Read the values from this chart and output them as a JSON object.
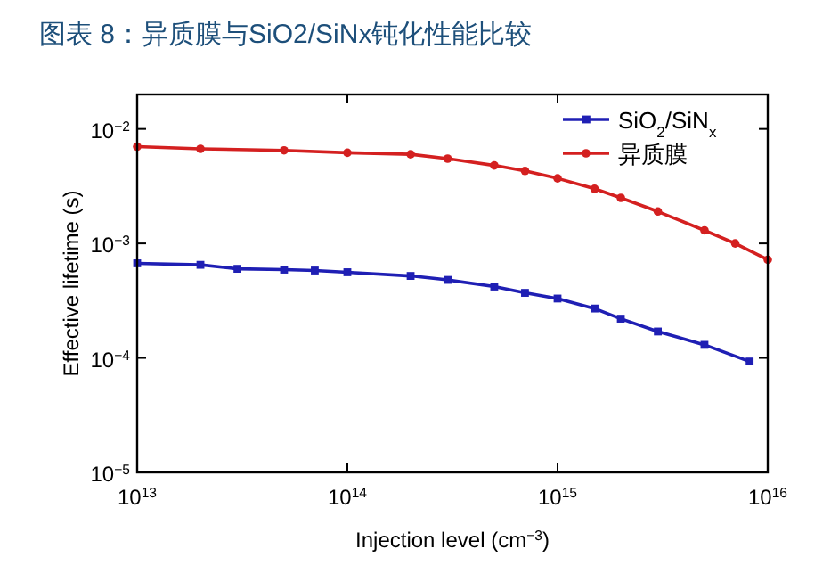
{
  "chart_data": {
    "type": "line",
    "title": "图表 8：异质膜与SiO2/SiNx钝化性能比较",
    "xlabel": "Injection level (cm$^{−3}$)",
    "ylabel": "Effective lifetime (s)",
    "log": "xy",
    "xlim": [
      10000000000000.0,
      1e+16
    ],
    "ylim": [
      1e-05,
      0.02
    ],
    "xticks": [
      {
        "value": 10000000000000.0,
        "label": "10$^{13}$"
      },
      {
        "value": 100000000000000.0,
        "label": "10$^{14}$"
      },
      {
        "value": 1000000000000000.0,
        "label": "10$^{15}$"
      },
      {
        "value": 1e+16,
        "label": "10$^{16}$"
      }
    ],
    "yticks": [
      {
        "value": 1e-05,
        "label": "10$^{−5}$"
      },
      {
        "value": 0.0001,
        "label": "10$^{−4}$"
      },
      {
        "value": 0.001,
        "label": "10$^{−3}$"
      },
      {
        "value": 0.01,
        "label": "10$^{−2}$"
      }
    ],
    "grid": false,
    "legend": "top right",
    "line_style": "solid",
    "series": [
      {
        "name": "SiO$_{2}$/SiN$_{x}$",
        "color": "#1f1fb4",
        "marker": "square",
        "x": [
          10000000000000.0,
          20000000000000.0,
          30000000000000.0,
          50000000000000.0,
          70000000000000.0,
          100000000000000.0,
          200000000000000.0,
          300000000000000.0,
          500000000000000.0,
          700000000000000.0,
          1000000000000000.0,
          1500000000000000.0,
          2000000000000000.0,
          3000000000000000.0,
          5000000000000000.0,
          8200000000000000.0
        ],
        "values": [
          0.00067,
          0.00065,
          0.0006,
          0.00059,
          0.00058,
          0.00056,
          0.00052,
          0.00048,
          0.00042,
          0.00037,
          0.00033,
          0.00027,
          0.00022,
          0.00017,
          0.00013,
          9.3e-05
        ]
      },
      {
        "name": "异质膜",
        "color": "#d42020",
        "marker": "circle",
        "x": [
          10000000000000.0,
          20000000000000.0,
          50000000000000.0,
          100000000000000.0,
          200000000000000.0,
          300000000000000.0,
          500000000000000.0,
          700000000000000.0,
          1000000000000000.0,
          1500000000000000.0,
          2000000000000000.0,
          3000000000000000.0,
          5000000000000000.0,
          7000000000000000.0,
          1e+16
        ],
        "values": [
          0.007,
          0.0067,
          0.0065,
          0.0062,
          0.006,
          0.0055,
          0.0048,
          0.0043,
          0.0037,
          0.003,
          0.0025,
          0.0019,
          0.0013,
          0.001,
          0.00072
        ]
      }
    ]
  }
}
